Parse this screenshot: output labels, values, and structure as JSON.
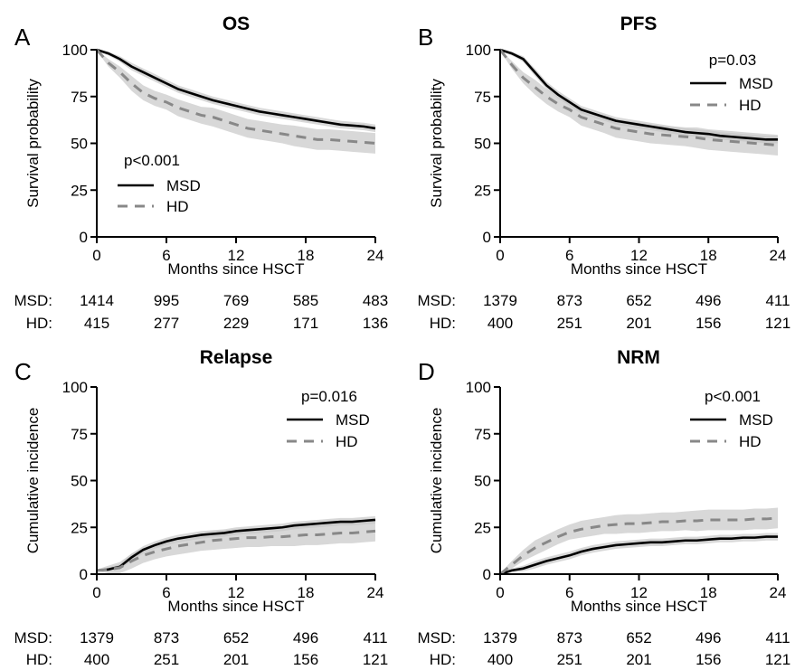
{
  "figure": {
    "risk_row_labels": [
      "MSD:",
      "HD:"
    ]
  },
  "chart_data": [
    {
      "panel_letter": "A",
      "title": "OS",
      "type": "line",
      "xlabel": "Months since HSCT",
      "ylabel": "Survival probability",
      "xlim": [
        0,
        24
      ],
      "ylim": [
        0,
        100
      ],
      "xticks": [
        "0",
        "6",
        "12",
        "18",
        "24"
      ],
      "yticks": [
        "0",
        "25",
        "50",
        "75",
        "100"
      ],
      "legend_placement": "lower-left",
      "pvalue": "p<0.001",
      "confidence_bands": true,
      "series": [
        {
          "name": "MSD",
          "color": "#000000",
          "style": "solid",
          "x": [
            0,
            1,
            2,
            3,
            4,
            5,
            6,
            7,
            8,
            9,
            10,
            11,
            12,
            13,
            14,
            15,
            16,
            17,
            18,
            19,
            20,
            21,
            22,
            23,
            24
          ],
          "y": [
            100,
            98,
            95,
            91,
            88,
            85,
            82,
            79,
            77,
            75,
            73,
            71.5,
            70,
            68.5,
            67,
            66,
            65,
            64,
            63,
            62,
            61,
            60,
            59.5,
            59,
            58
          ],
          "ci_width": [
            0.5,
            1,
            1.5,
            2,
            2,
            2,
            2,
            2,
            2,
            2,
            2,
            2,
            2,
            2,
            2,
            2,
            2,
            2,
            2,
            2,
            2,
            2,
            2,
            2,
            2
          ]
        },
        {
          "name": "HD",
          "color": "#888888",
          "style": "dashed",
          "x": [
            0,
            1,
            2,
            3,
            4,
            5,
            6,
            7,
            8,
            9,
            10,
            11,
            12,
            13,
            14,
            15,
            16,
            17,
            18,
            19,
            20,
            21,
            22,
            23,
            24
          ],
          "y": [
            100,
            93,
            88,
            82,
            77,
            74,
            72,
            69,
            67,
            65,
            64,
            62,
            60,
            58,
            57,
            56,
            55,
            54,
            53,
            52,
            52,
            51.5,
            51,
            50.5,
            50
          ],
          "ci_width": [
            0.5,
            2,
            3,
            4,
            4,
            4,
            4,
            4.5,
            4.5,
            4.5,
            5,
            5,
            5,
            5,
            5,
            5,
            5,
            5.5,
            5.5,
            5.5,
            5.5,
            5.5,
            5.5,
            5.5,
            5.5
          ]
        }
      ],
      "risk_table": {
        "x": [
          0,
          6,
          12,
          18,
          24
        ],
        "MSD": [
          "1414",
          "995",
          "769",
          "585",
          "483"
        ],
        "HD": [
          "415",
          "277",
          "229",
          "171",
          "136"
        ]
      }
    },
    {
      "panel_letter": "B",
      "title": "PFS",
      "type": "line",
      "xlabel": "Months since HSCT",
      "ylabel": "Survival probability",
      "xlim": [
        0,
        24
      ],
      "ylim": [
        0,
        100
      ],
      "xticks": [
        "0",
        "6",
        "12",
        "18",
        "24"
      ],
      "yticks": [
        "0",
        "25",
        "50",
        "75",
        "100"
      ],
      "legend_placement": "upper-right",
      "pvalue": "p=0.03",
      "confidence_bands": true,
      "series": [
        {
          "name": "MSD",
          "color": "#000000",
          "style": "solid",
          "x": [
            0,
            1,
            2,
            3,
            4,
            5,
            6,
            7,
            8,
            9,
            10,
            11,
            12,
            13,
            14,
            15,
            16,
            17,
            18,
            19,
            20,
            21,
            22,
            23,
            24
          ],
          "y": [
            100,
            98,
            95,
            88,
            81,
            76,
            72,
            68,
            66,
            64,
            62,
            61,
            60,
            59,
            58,
            57,
            56,
            55.5,
            55,
            54,
            53.5,
            53,
            52.5,
            52,
            52
          ],
          "ci_width": [
            0.5,
            1,
            1.5,
            2,
            2,
            2,
            2,
            2,
            2,
            2,
            2,
            2,
            2,
            2,
            2,
            2,
            2,
            2,
            2,
            2,
            2,
            2,
            2,
            2,
            2
          ]
        },
        {
          "name": "HD",
          "color": "#888888",
          "style": "dashed",
          "x": [
            0,
            1,
            2,
            3,
            4,
            5,
            6,
            7,
            8,
            9,
            10,
            11,
            12,
            13,
            14,
            15,
            16,
            17,
            18,
            19,
            20,
            21,
            22,
            23,
            24
          ],
          "y": [
            100,
            92,
            85,
            80,
            75,
            71,
            68,
            64,
            62,
            60,
            58,
            57,
            56,
            55,
            54.5,
            54,
            53.5,
            53,
            52,
            51.5,
            51,
            50.5,
            50,
            49.5,
            49
          ],
          "ci_width": [
            0.5,
            2,
            3,
            4,
            4,
            4,
            4,
            4.5,
            4.5,
            4.5,
            5,
            5,
            5,
            5,
            5,
            5,
            5,
            5.5,
            5.5,
            5.5,
            5.5,
            5.5,
            5.5,
            5.5,
            5.5
          ]
        }
      ],
      "risk_table": {
        "x": [
          0,
          6,
          12,
          18,
          24
        ],
        "MSD": [
          "1379",
          "873",
          "652",
          "496",
          "411"
        ],
        "HD": [
          "400",
          "251",
          "201",
          "156",
          "121"
        ]
      }
    },
    {
      "panel_letter": "C",
      "title": "Relapse",
      "type": "line",
      "xlabel": "Months since HSCT",
      "ylabel": "Cumulative incidence",
      "xlim": [
        0,
        24
      ],
      "ylim": [
        0,
        100
      ],
      "xticks": [
        "0",
        "6",
        "12",
        "18",
        "24"
      ],
      "yticks": [
        "0",
        "25",
        "50",
        "75",
        "100"
      ],
      "legend_placement": "upper-right",
      "pvalue": "p=0.016",
      "confidence_bands": true,
      "series": [
        {
          "name": "MSD",
          "color": "#000000",
          "style": "solid",
          "x": [
            0,
            1,
            2,
            3,
            4,
            5,
            6,
            7,
            8,
            9,
            10,
            11,
            12,
            13,
            14,
            15,
            16,
            17,
            18,
            19,
            20,
            21,
            22,
            23,
            24
          ],
          "y": [
            2,
            2.5,
            4,
            9,
            13,
            15.5,
            17.5,
            19,
            20,
            21,
            21.5,
            22,
            23,
            23.5,
            24,
            24.5,
            25,
            26,
            26.5,
            27,
            27.5,
            28,
            28,
            28.5,
            29
          ],
          "ci_width": [
            0.5,
            1,
            1.5,
            2,
            2,
            2,
            2,
            2,
            2,
            2,
            2,
            2,
            2,
            2,
            2,
            2,
            2,
            2,
            2,
            2,
            2,
            2,
            2,
            2,
            2
          ]
        },
        {
          "name": "HD",
          "color": "#888888",
          "style": "dashed",
          "x": [
            0,
            1,
            2,
            3,
            4,
            5,
            6,
            7,
            8,
            9,
            10,
            11,
            12,
            13,
            14,
            15,
            16,
            17,
            18,
            19,
            20,
            21,
            22,
            23,
            24
          ],
          "y": [
            2,
            2.5,
            3.5,
            7,
            10,
            12,
            13.5,
            15,
            16,
            17,
            18,
            18.5,
            19,
            19.5,
            19.5,
            20,
            20,
            20.5,
            21,
            21,
            21.5,
            22,
            22,
            22.5,
            23
          ],
          "ci_width": [
            0.5,
            2,
            3,
            4,
            4,
            4,
            4,
            4.5,
            4.5,
            4.5,
            5,
            5,
            5,
            5,
            5,
            5,
            5,
            5.5,
            5.5,
            5.5,
            5.5,
            5.5,
            5.5,
            5.5,
            5.5
          ]
        }
      ],
      "risk_table": {
        "x": [
          0,
          6,
          12,
          18,
          24
        ],
        "MSD": [
          "1379",
          "873",
          "652",
          "496",
          "411"
        ],
        "HD": [
          "400",
          "251",
          "201",
          "156",
          "121"
        ]
      }
    },
    {
      "panel_letter": "D",
      "title": "NRM",
      "type": "line",
      "xlabel": "Months since HSCT",
      "ylabel": "Cumulative incidence",
      "xlim": [
        0,
        24
      ],
      "ylim": [
        0,
        100
      ],
      "xticks": [
        "0",
        "6",
        "12",
        "18",
        "24"
      ],
      "yticks": [
        "0",
        "25",
        "50",
        "75",
        "100"
      ],
      "legend_placement": "upper-right",
      "pvalue": "p<0.001",
      "confidence_bands": true,
      "series": [
        {
          "name": "MSD",
          "color": "#000000",
          "style": "solid",
          "x": [
            0,
            1,
            2,
            3,
            4,
            5,
            6,
            7,
            8,
            9,
            10,
            11,
            12,
            13,
            14,
            15,
            16,
            17,
            18,
            19,
            20,
            21,
            22,
            23,
            24
          ],
          "y": [
            0,
            2,
            3,
            5,
            7,
            8.5,
            10,
            12,
            13.5,
            14.5,
            15.5,
            16,
            16.5,
            17,
            17,
            17.5,
            18,
            18,
            18.5,
            19,
            19,
            19.5,
            19.5,
            20,
            20
          ],
          "ci_width": [
            0.5,
            1,
            1.5,
            2,
            2,
            2,
            2,
            2,
            2,
            2,
            2,
            2,
            2,
            2,
            2,
            2,
            2,
            2,
            2,
            2,
            2,
            2,
            2,
            2,
            2
          ]
        },
        {
          "name": "HD",
          "color": "#888888",
          "style": "dashed",
          "x": [
            0,
            1,
            2,
            3,
            4,
            5,
            6,
            7,
            8,
            9,
            10,
            11,
            12,
            13,
            14,
            15,
            16,
            17,
            18,
            19,
            20,
            21,
            22,
            23,
            24
          ],
          "y": [
            0,
            5,
            10,
            14,
            17,
            20,
            22.5,
            24,
            25,
            26,
            26.5,
            27,
            27,
            27.5,
            28,
            28,
            28.5,
            28.5,
            29,
            29,
            29,
            29,
            29.5,
            29.5,
            30
          ],
          "ci_width": [
            0.5,
            2,
            3,
            4,
            4,
            4,
            4,
            4.5,
            4.5,
            4.5,
            5,
            5,
            5,
            5,
            5,
            5,
            5,
            5.5,
            5.5,
            5.5,
            5.5,
            5.5,
            5.5,
            5.5,
            5.5
          ]
        }
      ],
      "risk_table": {
        "x": [
          0,
          6,
          12,
          18,
          24
        ],
        "MSD": [
          "1379",
          "873",
          "652",
          "496",
          "411"
        ],
        "HD": [
          "400",
          "251",
          "201",
          "156",
          "121"
        ]
      }
    }
  ]
}
